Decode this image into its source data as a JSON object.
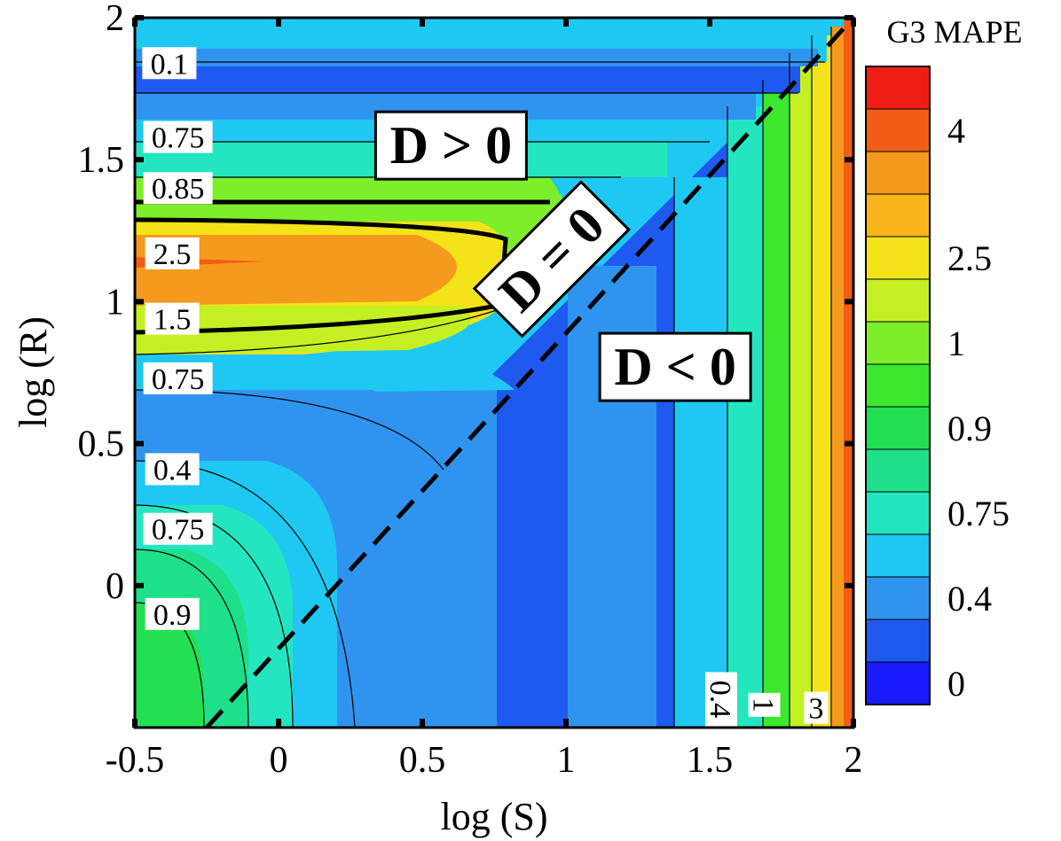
{
  "chart_data": {
    "type": "heatmap",
    "title": "",
    "xlabel": "log (S)",
    "ylabel": "log (R)",
    "xlim": [
      -0.5,
      2
    ],
    "ylim": [
      -0.5,
      2
    ],
    "x_ticks": [
      -0.5,
      0,
      0.5,
      1,
      1.5,
      2
    ],
    "x_tick_labels": [
      "-0.5",
      "0",
      "0.5",
      "1",
      "1.5",
      "2"
    ],
    "y_ticks": [
      0,
      0.5,
      1,
      1.5,
      2
    ],
    "y_tick_labels": [
      "0",
      "0.5",
      "1",
      "1.5",
      "2"
    ],
    "colorbar": {
      "title": "G3 MAPE",
      "levels": [
        {
          "label": "0",
          "color": "#1a1aff"
        },
        {
          "label": "",
          "color": "#1f5af0"
        },
        {
          "label": "0.4",
          "color": "#2f94f0"
        },
        {
          "label": "",
          "color": "#1fc8f2"
        },
        {
          "label": "0.75",
          "color": "#23e6c0"
        },
        {
          "label": "",
          "color": "#1fe08a"
        },
        {
          "label": "0.9",
          "color": "#22e052"
        },
        {
          "label": "",
          "color": "#3ce82e"
        },
        {
          "label": "1",
          "color": "#7cee2a"
        },
        {
          "label": "",
          "color": "#c4f023"
        },
        {
          "label": "2.5",
          "color": "#f5e31a"
        },
        {
          "label": "",
          "color": "#f8b61c"
        },
        {
          "label": "",
          "color": "#f49a1c"
        },
        {
          "label": "4",
          "color": "#f25e16"
        },
        {
          "label": "",
          "color": "#ee1e12"
        }
      ]
    },
    "boundary_line": {
      "label": "D = 0",
      "points": [
        [
          -0.25,
          -0.5
        ],
        [
          2,
          2
        ]
      ],
      "style": "dashed"
    },
    "region_labels": [
      {
        "text": "D > 0",
        "x": 0.6,
        "y": 1.55
      },
      {
        "text": "D = 0",
        "x": 0.95,
        "y": 1.15,
        "rotation_deg": -45
      },
      {
        "text": "D < 0",
        "x": 1.38,
        "y": 0.77
      }
    ],
    "contour_labels": [
      {
        "text": "0.1",
        "x": -0.38,
        "y": 1.84
      },
      {
        "text": "0.75",
        "x": -0.35,
        "y": 1.58
      },
      {
        "text": "0.85",
        "x": -0.35,
        "y": 1.4
      },
      {
        "text": "2.5",
        "x": -0.37,
        "y": 1.17
      },
      {
        "text": "1.5",
        "x": -0.37,
        "y": 0.94
      },
      {
        "text": "0.75",
        "x": -0.35,
        "y": 0.73
      },
      {
        "text": "0.4",
        "x": -0.37,
        "y": 0.41
      },
      {
        "text": "0.75",
        "x": -0.35,
        "y": 0.2
      },
      {
        "text": "0.9",
        "x": -0.37,
        "y": -0.1
      },
      {
        "text": "0.4",
        "x": 1.54,
        "y": -0.4,
        "rotation_deg": 90
      },
      {
        "text": "1",
        "x": 1.69,
        "y": -0.42,
        "rotation_deg": 90
      },
      {
        "text": "3",
        "x": 1.87,
        "y": -0.43
      }
    ]
  }
}
